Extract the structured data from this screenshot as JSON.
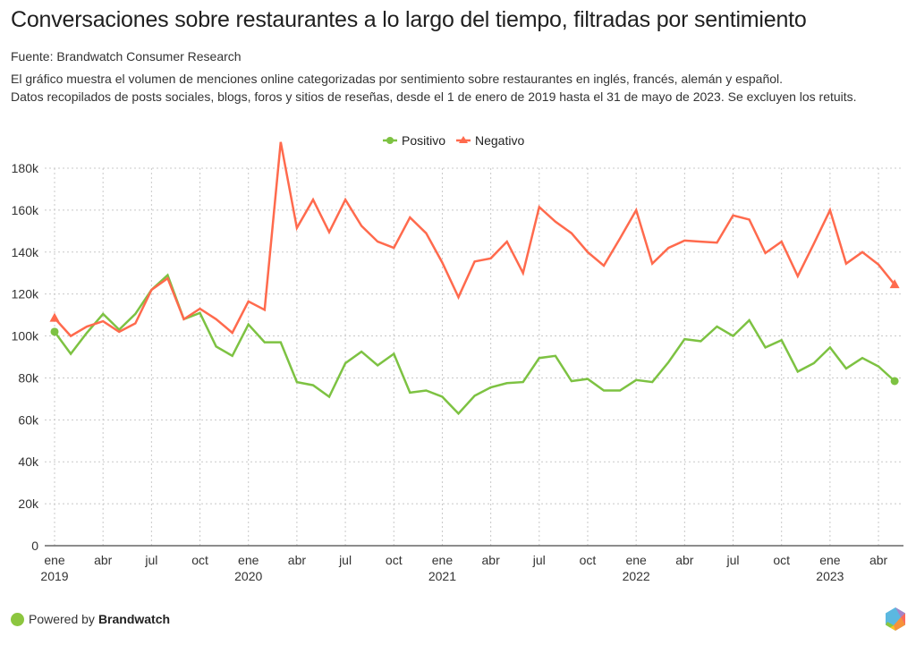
{
  "header": {
    "title": "Conversaciones sobre restaurantes a lo largo del tiempo, filtradas por sentimiento",
    "source": "Fuente: Brandwatch Consumer Research",
    "description_lines": [
      "El gráfico muestra el volumen de menciones online categorizadas por sentimiento sobre restaurantes en inglés, francés, alemán y español.",
      "Datos recopilados de posts sociales, blogs, foros y sitios de reseñas, desde el 1 de enero de 2019 hasta el 31 de mayo de 2023. Se excluyen los retuits."
    ]
  },
  "footer": {
    "powered_prefix": "Powered by",
    "powered_brand": "Brandwatch",
    "logo_icon": "brandwatch-hexagon-logo"
  },
  "chart_data": {
    "type": "line",
    "title": "",
    "xlabel": "",
    "ylabel": "",
    "ylim": [
      0,
      180000
    ],
    "y_ticks": [
      0,
      20000,
      40000,
      60000,
      80000,
      100000,
      120000,
      140000,
      160000,
      180000
    ],
    "y_tick_labels": [
      "0",
      "20k",
      "40k",
      "60k",
      "80k",
      "100k",
      "120k",
      "140k",
      "160k",
      "180k"
    ],
    "grid": true,
    "legend_position": "top-center",
    "x_tick_labels": [
      {
        "month_index": 0,
        "label": "ene",
        "year": "2019"
      },
      {
        "month_index": 3,
        "label": "abr",
        "year": ""
      },
      {
        "month_index": 6,
        "label": "jul",
        "year": ""
      },
      {
        "month_index": 9,
        "label": "oct",
        "year": ""
      },
      {
        "month_index": 12,
        "label": "ene",
        "year": "2020"
      },
      {
        "month_index": 15,
        "label": "abr",
        "year": ""
      },
      {
        "month_index": 18,
        "label": "jul",
        "year": ""
      },
      {
        "month_index": 21,
        "label": "oct",
        "year": ""
      },
      {
        "month_index": 24,
        "label": "ene",
        "year": "2021"
      },
      {
        "month_index": 27,
        "label": "abr",
        "year": ""
      },
      {
        "month_index": 30,
        "label": "jul",
        "year": ""
      },
      {
        "month_index": 33,
        "label": "oct",
        "year": ""
      },
      {
        "month_index": 36,
        "label": "ene",
        "year": "2022"
      },
      {
        "month_index": 39,
        "label": "abr",
        "year": ""
      },
      {
        "month_index": 42,
        "label": "jul",
        "year": ""
      },
      {
        "month_index": 45,
        "label": "oct",
        "year": ""
      },
      {
        "month_index": 48,
        "label": "ene",
        "year": "2023"
      },
      {
        "month_index": 51,
        "label": "abr",
        "year": ""
      }
    ],
    "x": [
      "2019-01",
      "2019-02",
      "2019-03",
      "2019-04",
      "2019-05",
      "2019-06",
      "2019-07",
      "2019-08",
      "2019-09",
      "2019-10",
      "2019-11",
      "2019-12",
      "2020-01",
      "2020-02",
      "2020-03",
      "2020-04",
      "2020-05",
      "2020-06",
      "2020-07",
      "2020-08",
      "2020-09",
      "2020-10",
      "2020-11",
      "2020-12",
      "2021-01",
      "2021-02",
      "2021-03",
      "2021-04",
      "2021-05",
      "2021-06",
      "2021-07",
      "2021-08",
      "2021-09",
      "2021-10",
      "2021-11",
      "2021-12",
      "2022-01",
      "2022-02",
      "2022-03",
      "2022-04",
      "2022-05",
      "2022-06",
      "2022-07",
      "2022-08",
      "2022-09",
      "2022-10",
      "2022-11",
      "2022-12",
      "2023-01",
      "2023-02",
      "2023-03",
      "2023-04",
      "2023-05"
    ],
    "series": [
      {
        "name": "Positivo",
        "color": "#7dc242",
        "marker": "circle",
        "values": [
          102000,
          91500,
          101500,
          110500,
          103000,
          110500,
          122000,
          129000,
          108000,
          111000,
          95000,
          90500,
          105500,
          97000,
          97000,
          78000,
          76500,
          71000,
          87000,
          92500,
          86000,
          91500,
          73000,
          74000,
          71000,
          63000,
          71500,
          75500,
          77500,
          78000,
          89500,
          90500,
          78500,
          79500,
          74000,
          74000,
          79000,
          78000,
          87500,
          98500,
          97500,
          104500,
          100000,
          107500,
          94500,
          98000,
          83000,
          87000,
          94500,
          84500,
          89500,
          85500,
          78500
        ]
      },
      {
        "name": "Negativo",
        "color": "#ff6a4d",
        "marker": "triangle",
        "values": [
          108500,
          100000,
          104500,
          107000,
          102000,
          106000,
          122000,
          127500,
          108000,
          113000,
          108000,
          101500,
          116500,
          112500,
          192500,
          151500,
          165000,
          149500,
          165000,
          152500,
          145000,
          142000,
          156500,
          149000,
          135000,
          118500,
          135500,
          137000,
          145000,
          130000,
          161500,
          154500,
          149000,
          140000,
          133500,
          146500,
          160000,
          134500,
          142000,
          145500,
          145000,
          144500,
          157500,
          155500,
          139500,
          145000,
          128500,
          144000,
          160000,
          134500,
          140000,
          134000,
          124500
        ]
      }
    ]
  }
}
